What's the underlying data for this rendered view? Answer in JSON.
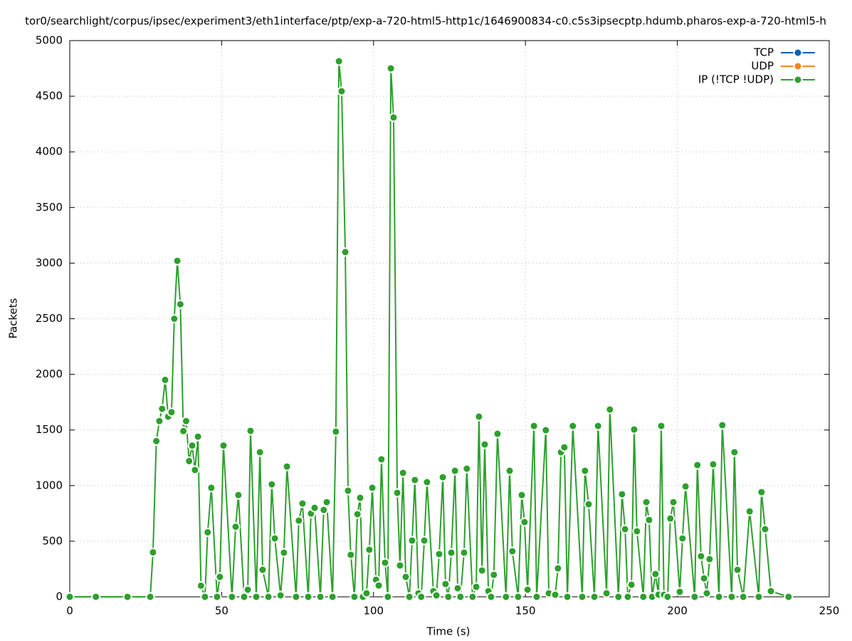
{
  "chart_data": {
    "type": "line",
    "title": "tor0/searchlight/corpus/ipsec/experiment3/eth1interface/ptp/exp-a-720-html5-http1c/1646900834-c0.c5s3ipsecptp.hdumb.pharos-exp-a-720-html5-h",
    "xlabel": "Time (s)",
    "ylabel": "Packets",
    "xlim": [
      0,
      250
    ],
    "xticks": [
      0,
      50,
      100,
      150,
      200,
      250
    ],
    "ylim": [
      0,
      5000
    ],
    "yticks": [
      0,
      500,
      1000,
      1500,
      2000,
      2500,
      3000,
      3500,
      4000,
      4500,
      5000
    ],
    "grid": true,
    "legend": "top-right",
    "series": [
      {
        "name": "TCP",
        "color": "#0060ad",
        "x": [
          0,
          8.6,
          19,
          26.5
        ],
        "values": [
          0,
          0,
          0,
          0
        ]
      },
      {
        "name": "UDP",
        "color": "#f28522",
        "x": [
          0,
          8.6,
          19,
          26.5
        ],
        "values": [
          0,
          0,
          0,
          0
        ]
      },
      {
        "name": "IP (!TCP  !UDP)",
        "color": "#2ca02c",
        "x": [
          0,
          8.6,
          19,
          26.5,
          27.4,
          28.5,
          29.5,
          30.4,
          31.4,
          32.4,
          33.5,
          34.4,
          35.4,
          36.4,
          37.4,
          38.3,
          39.3,
          40.3,
          41.2,
          42.2,
          43.2,
          44.5,
          45.4,
          46.6,
          48.5,
          49.4,
          50.6,
          53.4,
          54.6,
          55.5,
          57.4,
          58.6,
          59.5,
          61.4,
          62.6,
          63.5,
          65.4,
          66.5,
          67.5,
          69.4,
          70.5,
          71.5,
          74.5,
          75.4,
          76.6,
          78.5,
          79.4,
          80.6,
          82.5,
          83.6,
          84.6,
          86.5,
          87.6,
          88.6,
          89.5,
          90.7,
          91.6,
          92.5,
          93.7,
          94.7,
          95.6,
          96.5,
          97.7,
          98.6,
          99.6,
          100.8,
          101.7,
          102.6,
          103.8,
          104.7,
          105.7,
          106.6,
          107.8,
          108.7,
          109.7,
          110.6,
          111.8,
          112.7,
          113.6,
          114.8,
          115.7,
          116.7,
          117.6,
          119.7,
          120.7,
          121.6,
          122.8,
          123.7,
          124.6,
          125.6,
          126.8,
          127.7,
          128.6,
          129.8,
          130.7,
          132.6,
          133.8,
          134.7,
          135.7,
          136.6,
          137.8,
          138.7,
          139.6,
          140.8,
          143.6,
          144.8,
          145.7,
          147.6,
          148.8,
          149.7,
          150.7,
          152.8,
          153.7,
          156.7,
          157.7,
          159.8,
          160.7,
          161.7,
          162.8,
          163.8,
          165.6,
          168.7,
          169.6,
          170.8,
          172.7,
          173.9,
          176.7,
          177.8,
          180.6,
          181.8,
          182.8,
          183.7,
          184.9,
          185.8,
          186.7,
          188.8,
          189.8,
          190.7,
          191.7,
          192.8,
          193.8,
          194.7,
          195.6,
          196.8,
          197.7,
          198.7,
          200.8,
          201.7,
          202.7,
          205.7,
          206.6,
          207.8,
          208.8,
          209.7,
          210.6,
          211.8,
          213.7,
          214.8,
          217.9,
          218.8,
          219.8,
          221.7,
          223.8,
          226.8,
          227.7,
          228.9,
          230.8,
          236.6
        ],
        "values": [
          0,
          0,
          0,
          0,
          400,
          1400,
          1580,
          1690,
          1950,
          1620,
          1660,
          2500,
          3020,
          2630,
          1490,
          1580,
          1220,
          1360,
          1140,
          1440,
          100,
          0,
          580,
          980,
          0,
          180,
          1360,
          0,
          630,
          915,
          0,
          64,
          1492,
          0,
          1300,
          243,
          0,
          1011,
          525,
          13,
          397,
          1171,
          0,
          685,
          839,
          0,
          749,
          800,
          0,
          781,
          851,
          0,
          1485,
          4814,
          4545,
          3099,
          954,
          378,
          0,
          743,
          890,
          0,
          32,
          423,
          980,
          154,
          102,
          1236,
          307,
          0,
          4750,
          4309,
          935,
          282,
          1114,
          179,
          0,
          506,
          1050,
          32,
          0,
          506,
          1031,
          51,
          13,
          384,
          1075,
          115,
          0,
          397,
          1133,
          77,
          0,
          397,
          1152,
          0,
          90,
          1620,
          237,
          1370,
          51,
          0,
          198,
          1466,
          0,
          1133,
          410,
          0,
          915,
          672,
          64,
          1536,
          0,
          1498,
          32,
          19,
          256,
          1300,
          1344,
          0,
          1536,
          0,
          1133,
          832,
          0,
          1536,
          32,
          1684,
          0,
          922,
          608,
          0,
          109,
          1504,
          589,
          0,
          851,
          691,
          0,
          205,
          20,
          1536,
          19,
          0,
          704,
          851,
          45,
          525,
          992,
          0,
          1184,
          365,
          166,
          32,
          339,
          1191,
          0,
          1543,
          0,
          1300,
          243,
          0,
          768,
          0,
          941,
          608,
          51,
          0
        ]
      }
    ]
  }
}
